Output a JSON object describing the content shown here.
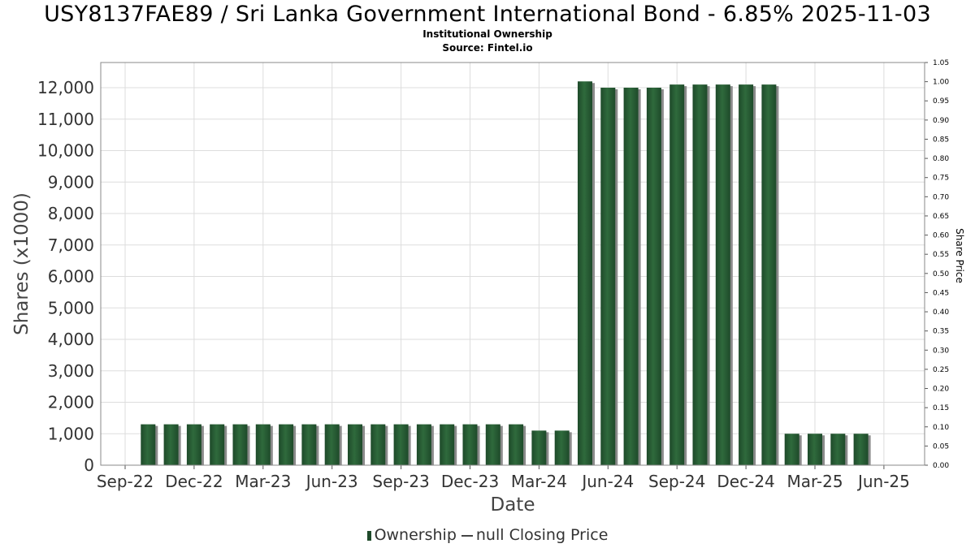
{
  "title": "USY8137FAE89 / Sri Lanka Government International Bond - 6.85% 2025-11-03",
  "subtitle1": "Institutional Ownership",
  "subtitle2": "Source: Fintel.io",
  "legend": {
    "ownership": "Ownership",
    "closing_price": "null Closing Price"
  },
  "colors": {
    "bar": "#1e4a2a",
    "bar_highlight": "#2f6a3c",
    "bar_shadow": "#8a8a8a",
    "grid": "#dddddd",
    "frame": "#888888"
  },
  "chart_data": {
    "type": "bar",
    "xlabel": "Date",
    "ylabel": "Shares (x1000)",
    "y2label": "Share Price",
    "ylim": [
      0,
      12800
    ],
    "y2lim": [
      0,
      1.05
    ],
    "yticks": [
      0,
      1000,
      2000,
      3000,
      4000,
      5000,
      6000,
      7000,
      8000,
      9000,
      10000,
      11000,
      12000
    ],
    "ytick_labels": [
      "0",
      "1,000",
      "2,000",
      "3,000",
      "4,000",
      "5,000",
      "6,000",
      "7,000",
      "8,000",
      "9,000",
      "10,000",
      "11,000",
      "12,000"
    ],
    "y2ticks": [
      "0.00",
      "0.05",
      "0.10",
      "0.15",
      "0.20",
      "0.25",
      "0.30",
      "0.35",
      "0.40",
      "0.45",
      "0.50",
      "0.55",
      "0.60",
      "0.65",
      "0.70",
      "0.75",
      "0.80",
      "0.85",
      "0.90",
      "0.95",
      "1.00",
      "1.05"
    ],
    "xtick_labels": [
      "Sep-22",
      "Dec-22",
      "Mar-23",
      "Jun-23",
      "Sep-23",
      "Dec-23",
      "Mar-24",
      "Jun-24",
      "Sep-24",
      "Dec-24",
      "Mar-25",
      "Jun-25"
    ],
    "grid": true,
    "legend_position": "bottom",
    "series": [
      {
        "name": "Ownership",
        "values": [
          1300,
          1300,
          1300,
          1300,
          1300,
          1300,
          1300,
          1300,
          1300,
          1300,
          1300,
          1300,
          1300,
          1300,
          1300,
          1300,
          1300,
          1100,
          1100,
          12200,
          12000,
          12000,
          12000,
          12100,
          12100,
          12100,
          12100,
          12100,
          1000,
          1000,
          1000,
          1000
        ]
      }
    ]
  }
}
